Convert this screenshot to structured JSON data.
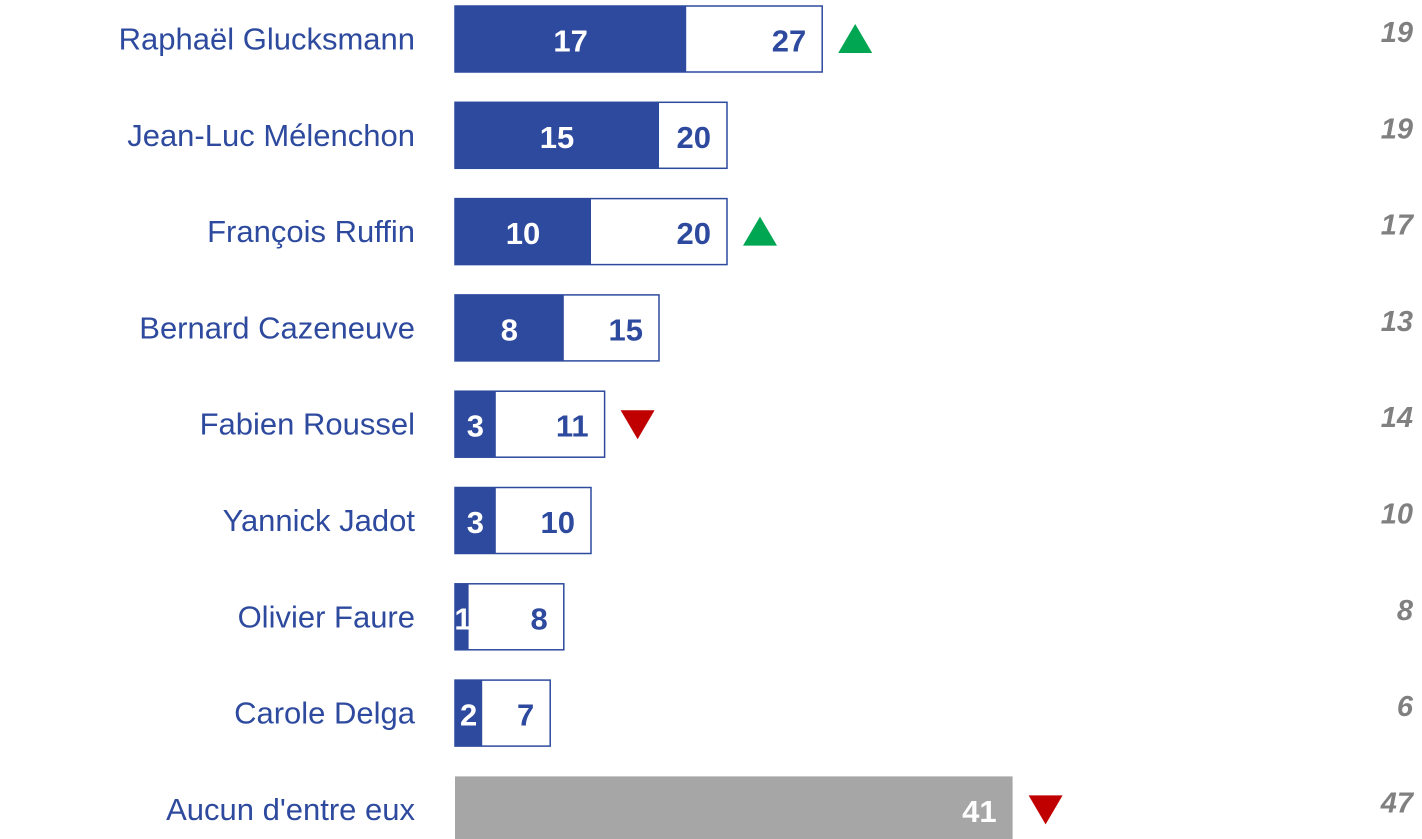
{
  "chart_data": {
    "type": "bar",
    "orientation": "horizontal",
    "categories": [
      "Raphaël Glucksmann",
      "Jean-Luc Mélenchon",
      "François Ruffin",
      "Bernard Cazeneuve",
      "Fabien Roussel",
      "Yannick Jadot",
      "Olivier Faure",
      "Carole Delga",
      "Aucun d'entre eux"
    ],
    "series": [
      {
        "color": "#2e4a9e",
        "values": [
          17,
          15,
          10,
          8,
          3,
          3,
          1,
          2,
          null
        ]
      },
      {
        "color": "#ffffff",
        "values": [
          27,
          20,
          20,
          15,
          11,
          10,
          8,
          7,
          41
        ]
      }
    ],
    "bar_colors": [
      null,
      null,
      null,
      null,
      null,
      null,
      null,
      null,
      "#a6a6a6"
    ],
    "outline_color": "#2e4a9e",
    "trend": [
      "up",
      null,
      "up",
      null,
      "down",
      null,
      null,
      null,
      "down"
    ],
    "trend_colors": {
      "up": "#00a651",
      "down": "#c00000"
    },
    "previous": [
      19,
      19,
      17,
      13,
      14,
      10,
      8,
      6,
      47
    ],
    "xlim": [
      0,
      70
    ]
  }
}
